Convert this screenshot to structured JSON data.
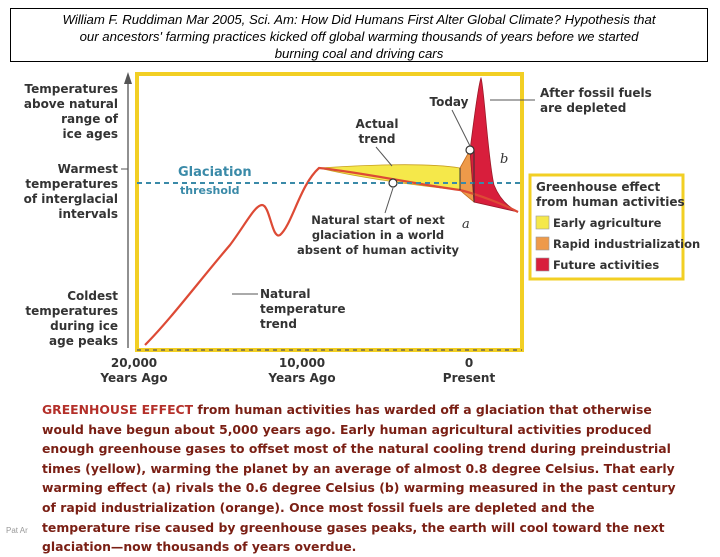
{
  "header": {
    "title_line1": "William F. Ruddiman Mar 2005, Sci. Am: How Did Humans First Alter Global Climate? Hypothesis that",
    "title_line2": "our ancestors' farming practices kicked off global warming thousands of years before we started",
    "title_line3": "burning coal and driving cars"
  },
  "y_axis_labels": {
    "above": [
      "Temperatures",
      "above natural",
      "range of",
      "ice ages"
    ],
    "warmest": [
      "Warmest",
      "temperatures",
      "of interglacial",
      "intervals"
    ],
    "coldest": [
      "Coldest",
      "temperatures",
      "during ice",
      "age peaks"
    ]
  },
  "x_axis": {
    "ticks": [
      {
        "value": "20,000",
        "sub": "Years Ago"
      },
      {
        "value": "10,000",
        "sub": "Years Ago"
      },
      {
        "value": "0",
        "sub": "Present"
      }
    ]
  },
  "annotations": {
    "glaciation": [
      "Glaciation",
      "threshold"
    ],
    "actual_trend": [
      "Actual",
      "trend"
    ],
    "today": "Today",
    "after_fossil": [
      "After fossil fuels",
      "are depleted"
    ],
    "natural_start": [
      "Natural start of next",
      "glaciation in a world",
      "absent of human activity"
    ],
    "natural_trend": [
      "Natural",
      "temperature",
      "trend"
    ],
    "point_a": "a",
    "point_b": "b"
  },
  "legend": {
    "title": [
      "Greenhouse effect",
      "from human activities"
    ],
    "items": [
      {
        "label": "Early agriculture",
        "color": "#f5e84a"
      },
      {
        "label": "Rapid industrialization",
        "color": "#ee9a4a"
      },
      {
        "label": "Future activities",
        "color": "#d81e3c"
      }
    ]
  },
  "colors": {
    "curve": "#dd4a35",
    "panel_border": "#f2cf24",
    "threshold": "#3a8aa8",
    "text": "#333333",
    "caption": "#7a1f14"
  },
  "caption": {
    "lead": "GREENHOUSE EFFECT",
    "text": " from human activities has warded off a glaciation that otherwise would have begun about 5,000 years ago. Early human agricultural activities produced enough greenhouse gases to offset most of the natural cooling trend during preindustrial times (yellow), warming the planet by an average of almost 0.8 degree Celsius. That early warming effect (a) rivals the 0.6 degree Celsius (b) warming measured in the past century of rapid industrialization (orange). Once most fossil fuels are depleted and the temperature rise caused by greenhouse gases peaks, the earth will cool toward the next glaciation—now thousands of years overdue."
  },
  "footer": "Pat Ar"
}
